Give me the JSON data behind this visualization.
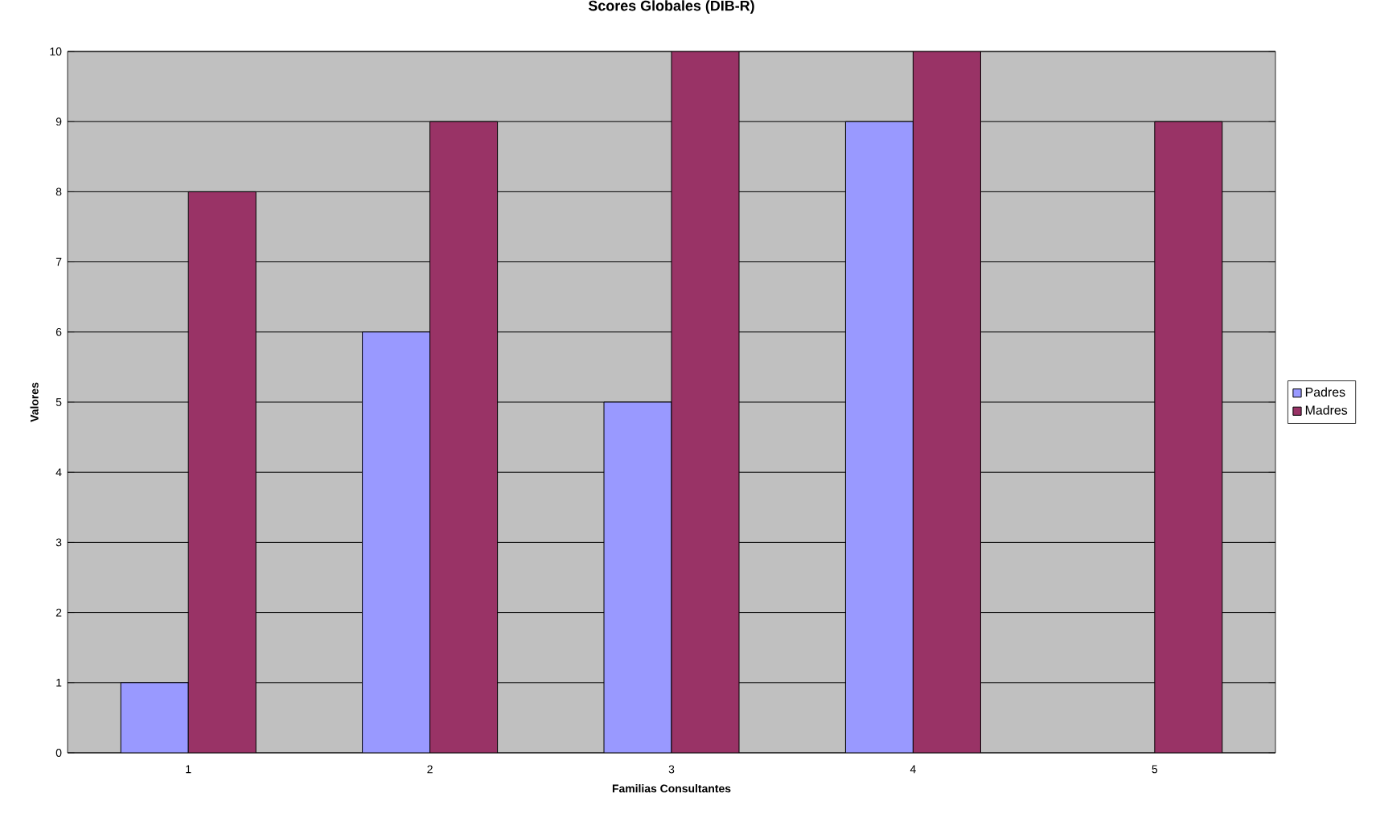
{
  "chart_data": {
    "type": "bar",
    "title": "Scores Globales (DIB-R)",
    "xlabel": "Familias Consultantes",
    "ylabel": "Valores",
    "categories": [
      "1",
      "2",
      "3",
      "4",
      "5"
    ],
    "series": [
      {
        "name": "Padres",
        "color": "#9999ff",
        "values": [
          1,
          6,
          5,
          9,
          null
        ]
      },
      {
        "name": "Madres",
        "color": "#993366",
        "values": [
          8,
          9,
          10,
          10,
          9
        ]
      }
    ],
    "ylim": [
      0,
      10
    ],
    "yticks": [
      0,
      1,
      2,
      3,
      4,
      5,
      6,
      7,
      8,
      9,
      10
    ],
    "grid": "y",
    "legend": "right"
  }
}
